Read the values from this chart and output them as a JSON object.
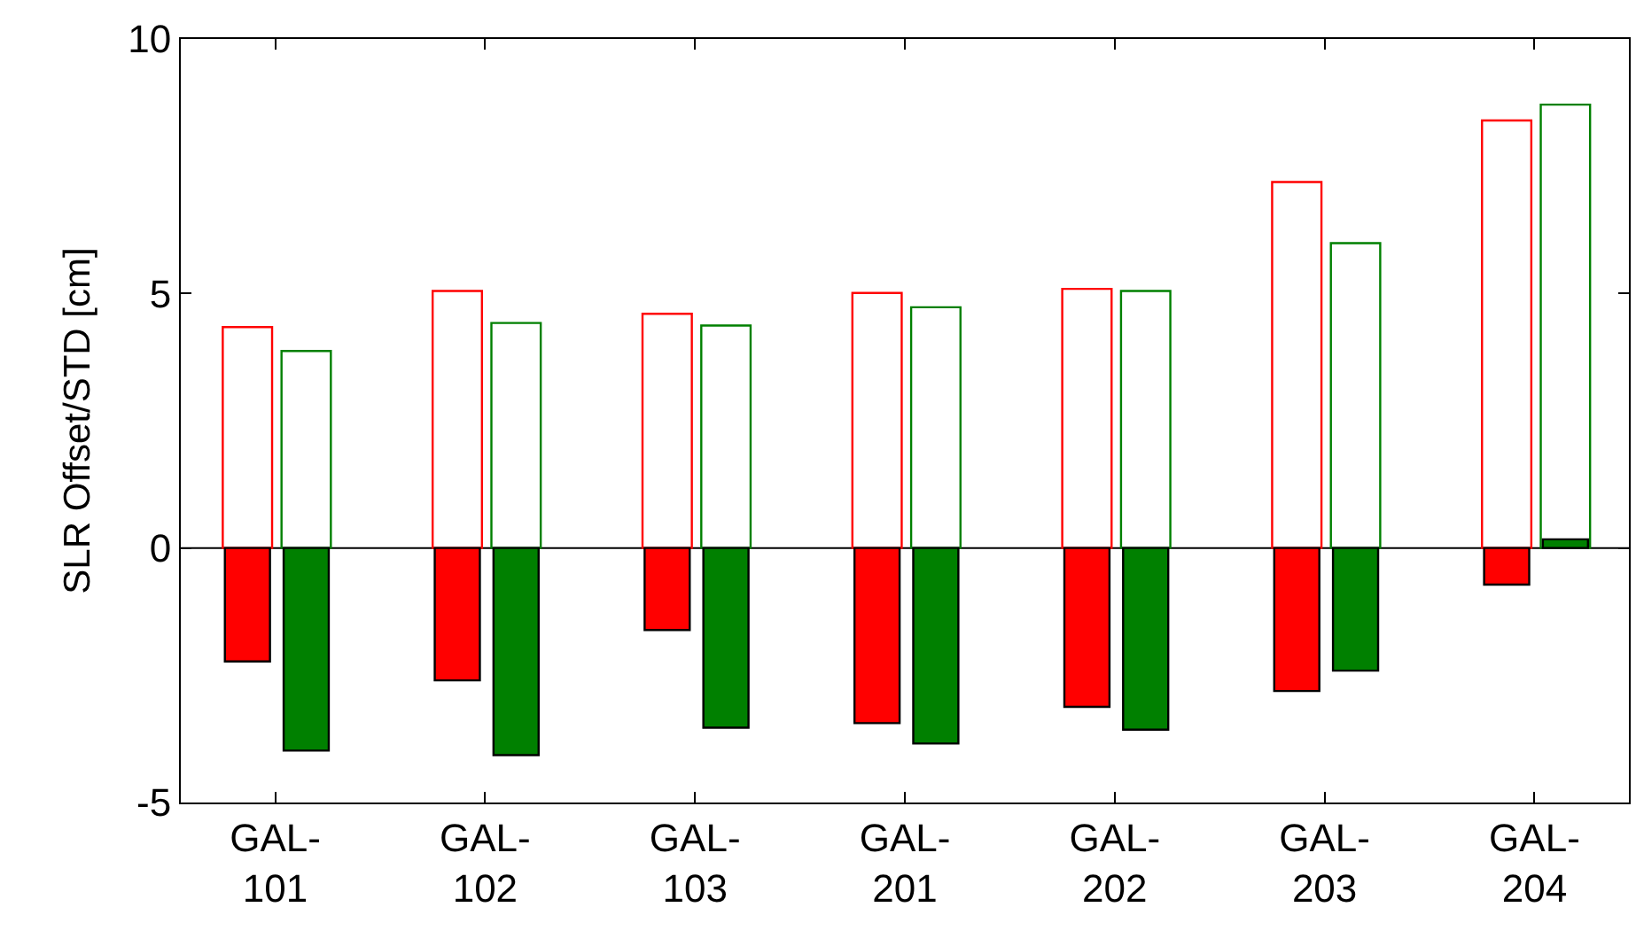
{
  "chart_data": {
    "type": "bar",
    "ylabel": "SLR Offset/STD [cm]",
    "categories": [
      "GAL-101",
      "GAL-102",
      "GAL-103",
      "GAL-201",
      "GAL-202",
      "GAL-203",
      "GAL-204"
    ],
    "series": [
      {
        "color": "#ff0000",
        "values": [
          4.34,
          5.05,
          4.6,
          5.01,
          5.09,
          7.19,
          8.4
        ]
      },
      {
        "color": "#ff0000",
        "values": [
          -2.23,
          -2.6,
          -1.61,
          -3.44,
          -3.12,
          -2.81,
          -0.72
        ]
      },
      {
        "color": "#008000",
        "values": [
          3.87,
          4.42,
          4.37,
          4.73,
          5.05,
          5.99,
          8.71
        ]
      },
      {
        "color": "#008000",
        "values": [
          -3.98,
          -4.07,
          -3.53,
          -3.84,
          -3.57,
          -2.41,
          0.17
        ]
      }
    ],
    "ylim": [
      -5,
      10
    ],
    "yticks": [
      -5,
      0,
      5,
      10
    ],
    "ref_lines": [
      {
        "axis": "y",
        "value": 0,
        "color": "#000000"
      }
    ]
  }
}
